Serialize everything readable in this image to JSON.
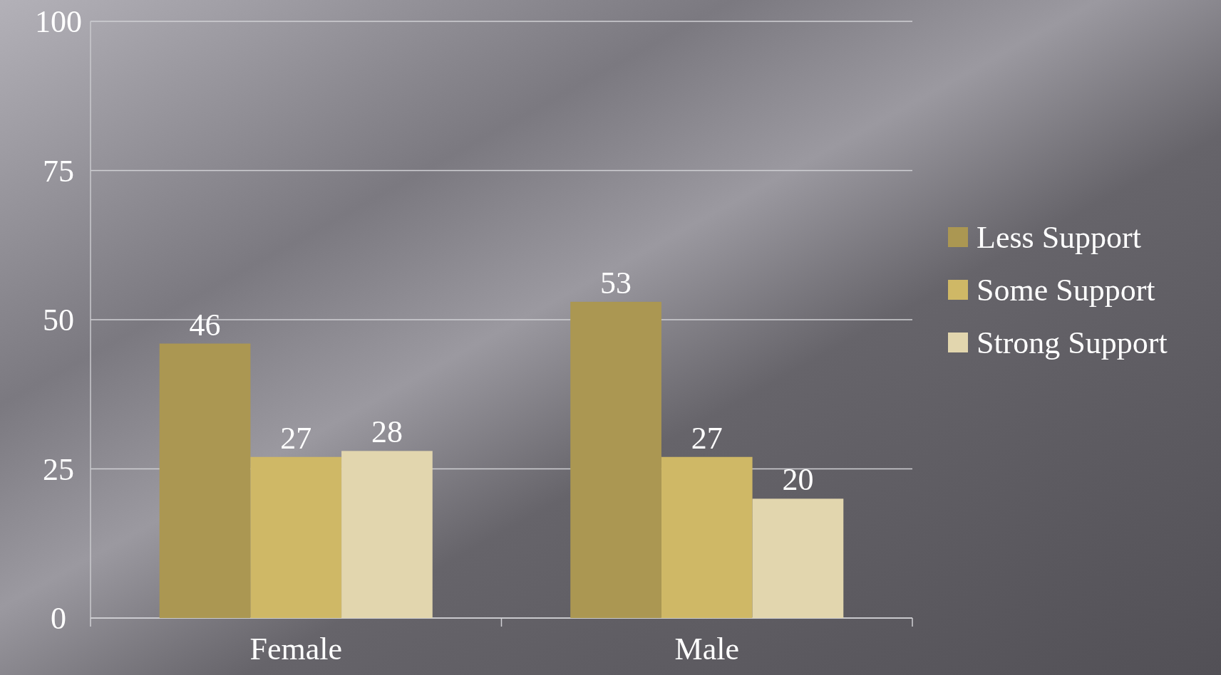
{
  "chart_data": {
    "type": "bar",
    "categories": [
      "Female",
      "Male"
    ],
    "series": [
      {
        "name": "Less Support",
        "color": "#ab9752",
        "values": [
          46,
          53
        ]
      },
      {
        "name": "Some Support",
        "color": "#cfb866",
        "values": [
          27,
          27
        ]
      },
      {
        "name": "Strong Support",
        "color": "#e2d6ae",
        "values": [
          28,
          20
        ]
      }
    ],
    "ylim": [
      0,
      100
    ],
    "yticks": [
      0,
      25,
      50,
      75,
      100
    ],
    "grid": "y",
    "legend": "right",
    "data_labels": true
  }
}
